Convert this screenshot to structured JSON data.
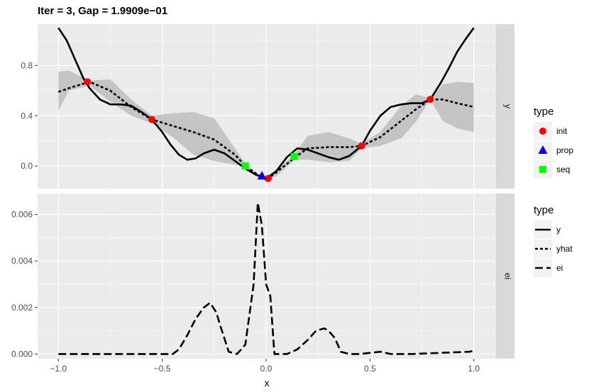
{
  "chart_data": {
    "type": "line",
    "title": "Iter = 3, Gap = 1.9909e−01",
    "xlabel": "x",
    "x_ticks": [
      -1.0,
      -0.5,
      0.0,
      0.5,
      1.0
    ],
    "x_tick_labels": [
      "−1.0",
      "−0.5",
      "0.0",
      "0.5",
      "1.0"
    ],
    "xlim": [
      -1.1,
      1.1
    ],
    "grid": true,
    "panels": [
      {
        "strip": "y",
        "ylim": [
          -0.18,
          1.13
        ],
        "y_ticks": [
          0.0,
          0.4,
          0.8
        ],
        "y_tick_labels": [
          "0.0",
          "0.4",
          "0.8"
        ],
        "band": {
          "x": [
            -1.0,
            -0.95,
            -0.85,
            -0.75,
            -0.65,
            -0.55,
            -0.45,
            -0.35,
            -0.25,
            -0.15,
            -0.1,
            -0.05,
            0.0,
            0.05,
            0.14,
            0.2,
            0.3,
            0.4,
            0.46,
            0.55,
            0.65,
            0.72,
            0.79,
            0.85,
            0.92,
            1.0
          ],
          "upper": [
            0.75,
            0.76,
            0.68,
            0.69,
            0.53,
            0.4,
            0.42,
            0.43,
            0.38,
            0.14,
            0.02,
            -0.05,
            -0.1,
            -0.04,
            0.1,
            0.24,
            0.27,
            0.22,
            0.18,
            0.27,
            0.48,
            0.57,
            0.54,
            0.65,
            0.67,
            0.66
          ],
          "lower": [
            0.44,
            0.6,
            0.64,
            0.51,
            0.4,
            0.34,
            0.23,
            0.09,
            0.04,
            0.01,
            -0.01,
            -0.07,
            -0.12,
            -0.08,
            0.05,
            0.05,
            0.03,
            0.04,
            0.14,
            0.16,
            0.22,
            0.35,
            0.53,
            0.36,
            0.3,
            0.27
          ]
        },
        "series": [
          {
            "name": "y",
            "dash": "solid",
            "x": [
              -1.0,
              -0.96,
              -0.92,
              -0.88,
              -0.85,
              -0.8,
              -0.75,
              -0.7,
              -0.65,
              -0.6,
              -0.55,
              -0.5,
              -0.46,
              -0.42,
              -0.38,
              -0.34,
              -0.3,
              -0.25,
              -0.2,
              -0.15,
              -0.1,
              -0.05,
              0.0,
              0.05,
              0.1,
              0.15,
              0.2,
              0.25,
              0.3,
              0.35,
              0.4,
              0.46,
              0.5,
              0.55,
              0.6,
              0.65,
              0.7,
              0.75,
              0.79,
              0.84,
              0.88,
              0.92,
              0.96,
              1.0
            ],
            "y": [
              1.1,
              1.0,
              0.85,
              0.7,
              0.62,
              0.53,
              0.49,
              0.49,
              0.48,
              0.43,
              0.37,
              0.27,
              0.17,
              0.09,
              0.05,
              0.06,
              0.1,
              0.13,
              0.1,
              0.04,
              -0.02,
              -0.07,
              -0.1,
              -0.04,
              0.07,
              0.14,
              0.13,
              0.1,
              0.07,
              0.05,
              0.08,
              0.16,
              0.28,
              0.4,
              0.47,
              0.49,
              0.5,
              0.5,
              0.53,
              0.66,
              0.78,
              0.91,
              1.01,
              1.1
            ]
          },
          {
            "name": "yhat",
            "dash": "dotted",
            "x": [
              -1.0,
              -0.93,
              -0.85,
              -0.75,
              -0.65,
              -0.55,
              -0.45,
              -0.35,
              -0.25,
              -0.15,
              -0.1,
              -0.05,
              0.0,
              0.05,
              0.14,
              0.2,
              0.3,
              0.4,
              0.46,
              0.55,
              0.65,
              0.72,
              0.79,
              0.85,
              0.92,
              1.0
            ],
            "y": [
              0.59,
              0.63,
              0.67,
              0.6,
              0.47,
              0.37,
              0.32,
              0.27,
              0.21,
              0.09,
              0.0,
              -0.06,
              -0.11,
              -0.05,
              0.07,
              0.14,
              0.15,
              0.15,
              0.16,
              0.23,
              0.36,
              0.45,
              0.53,
              0.53,
              0.5,
              0.47
            ]
          }
        ],
        "points": [
          {
            "type": "init",
            "x": -0.86,
            "y": 0.67
          },
          {
            "type": "init",
            "x": -0.55,
            "y": 0.37
          },
          {
            "type": "init",
            "x": 0.01,
            "y": -0.1
          },
          {
            "type": "init",
            "x": 0.46,
            "y": 0.16
          },
          {
            "type": "init",
            "x": 0.79,
            "y": 0.53
          },
          {
            "type": "prop",
            "x": -0.02,
            "y": -0.08
          },
          {
            "type": "seq",
            "x": -0.1,
            "y": 0.0
          },
          {
            "type": "seq",
            "x": 0.135,
            "y": 0.075
          }
        ]
      },
      {
        "strip": "ei",
        "ylim": [
          -0.0002,
          0.0069
        ],
        "y_ticks": [
          0.0,
          0.002,
          0.004,
          0.006
        ],
        "y_tick_labels": [
          "0.000",
          "0.002",
          "0.004",
          "0.006"
        ],
        "series": [
          {
            "name": "ei",
            "dash": "longdash",
            "x": [
              -1.0,
              -0.45,
              -0.42,
              -0.38,
              -0.34,
              -0.3,
              -0.27,
              -0.24,
              -0.22,
              -0.18,
              -0.14,
              -0.1,
              -0.06,
              -0.04,
              -0.02,
              0.0,
              0.02,
              0.04,
              0.06,
              0.1,
              0.15,
              0.2,
              0.24,
              0.28,
              0.3,
              0.33,
              0.36,
              0.4,
              0.45,
              0.55,
              0.6,
              0.7,
              0.98,
              1.0
            ],
            "y": [
              0.0,
              0.0,
              0.0002,
              0.0008,
              0.0015,
              0.002,
              0.0022,
              0.0018,
              0.0012,
              0.0001,
              0.0,
              0.0004,
              0.003,
              0.0065,
              0.0055,
              0.003,
              0.0025,
              0.0,
              0.0,
              0.0,
              0.0002,
              0.0006,
              0.001,
              0.0011,
              0.001,
              0.0007,
              0.0001,
              0.0,
              0.0,
              0.0001,
              0.0,
              0.0,
              0.0001,
              0.00015
            ]
          }
        ]
      }
    ],
    "legends": [
      {
        "title": "type",
        "entries": [
          {
            "label": "init",
            "shape": "circle",
            "color": "#ff0000"
          },
          {
            "label": "prop",
            "shape": "triangle",
            "color": "#0000ff"
          },
          {
            "label": "seq",
            "shape": "square",
            "color": "#00ff00"
          }
        ]
      },
      {
        "title": "type",
        "entries": [
          {
            "label": "y",
            "dash": "solid"
          },
          {
            "label": "yhat",
            "dash": "dotted"
          },
          {
            "label": "ei",
            "dash": "longdash"
          }
        ]
      }
    ],
    "colors": {
      "panel_bg": "#ebebeb",
      "grid": "#ffffff",
      "strip_bg": "#d9d9d9",
      "band": "#bdbdbd",
      "line": "#000000"
    }
  }
}
